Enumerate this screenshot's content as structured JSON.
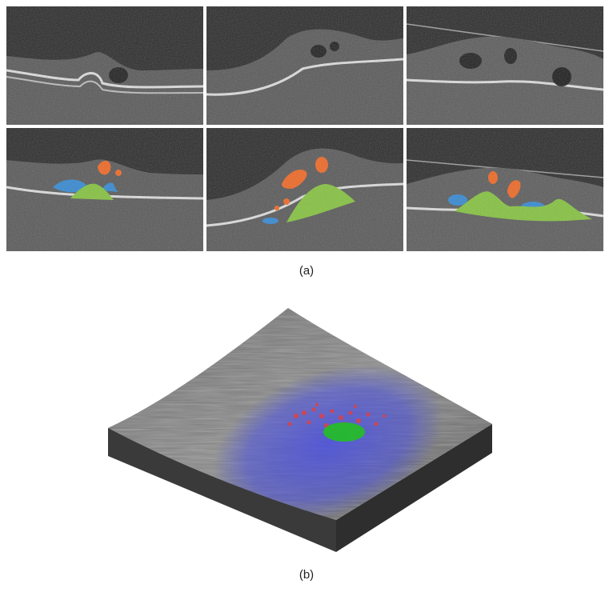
{
  "figure": {
    "caption_a": "(a)",
    "caption_b": "(b)"
  },
  "colors": {
    "irf": "#f0641e",
    "ped": "#82c23a",
    "srf": "#2f86d2",
    "volume_fluid": "#4a50e0",
    "volume_red": "#e04040",
    "volume_green": "#22c022",
    "background": "#ffffff",
    "scan_dark": "#262626"
  }
}
